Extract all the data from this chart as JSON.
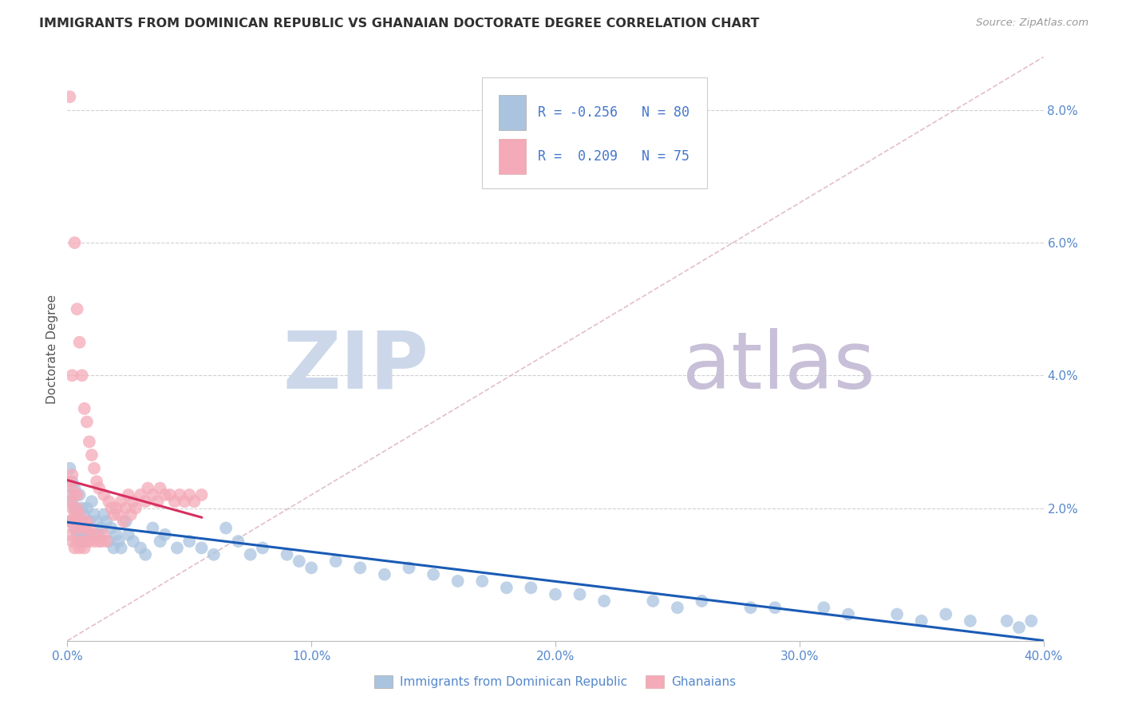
{
  "title": "IMMIGRANTS FROM DOMINICAN REPUBLIC VS GHANAIAN DOCTORATE DEGREE CORRELATION CHART",
  "source": "Source: ZipAtlas.com",
  "ylabel": "Doctorate Degree",
  "xlim": [
    0.0,
    0.4
  ],
  "ylim": [
    0.0,
    0.088
  ],
  "yticks": [
    0.0,
    0.02,
    0.04,
    0.06,
    0.08
  ],
  "ytick_labels": [
    "",
    "2.0%",
    "4.0%",
    "6.0%",
    "8.0%"
  ],
  "xticks": [
    0.0,
    0.1,
    0.2,
    0.3,
    0.4
  ],
  "xtick_labels": [
    "0.0%",
    "10.0%",
    "20.0%",
    "30.0%",
    "40.0%"
  ],
  "blue_color": "#aac4e0",
  "pink_color": "#f4aab8",
  "blue_line_color": "#1a5bb5",
  "pink_line_color": "#d63060",
  "diag_color": "#e0b8c0",
  "grid_color": "#d0d0d0",
  "title_color": "#303030",
  "axis_color": "#5588cc",
  "source_color": "#999999",
  "legend_text_color": "#4477cc",
  "watermark_zip_color": "#ccd8ea",
  "watermark_atlas_color": "#c8c0d8",
  "blue_x": [
    0.001,
    0.001,
    0.001,
    0.002,
    0.002,
    0.002,
    0.003,
    0.003,
    0.003,
    0.004,
    0.004,
    0.005,
    0.005,
    0.005,
    0.006,
    0.006,
    0.007,
    0.007,
    0.008,
    0.008,
    0.009,
    0.01,
    0.01,
    0.011,
    0.012,
    0.013,
    0.014,
    0.015,
    0.016,
    0.017,
    0.018,
    0.019,
    0.02,
    0.021,
    0.022,
    0.024,
    0.025,
    0.027,
    0.03,
    0.032,
    0.035,
    0.038,
    0.04,
    0.045,
    0.05,
    0.055,
    0.06,
    0.065,
    0.07,
    0.075,
    0.08,
    0.09,
    0.095,
    0.1,
    0.11,
    0.12,
    0.13,
    0.14,
    0.15,
    0.16,
    0.17,
    0.18,
    0.19,
    0.2,
    0.21,
    0.22,
    0.24,
    0.25,
    0.26,
    0.28,
    0.29,
    0.31,
    0.32,
    0.34,
    0.35,
    0.36,
    0.37,
    0.385,
    0.39,
    0.395
  ],
  "blue_y": [
    0.018,
    0.022,
    0.026,
    0.018,
    0.021,
    0.024,
    0.017,
    0.02,
    0.023,
    0.016,
    0.019,
    0.015,
    0.018,
    0.022,
    0.016,
    0.02,
    0.015,
    0.019,
    0.016,
    0.02,
    0.018,
    0.021,
    0.016,
    0.019,
    0.018,
    0.016,
    0.017,
    0.019,
    0.018,
    0.015,
    0.017,
    0.014,
    0.016,
    0.015,
    0.014,
    0.018,
    0.016,
    0.015,
    0.014,
    0.013,
    0.017,
    0.015,
    0.016,
    0.014,
    0.015,
    0.014,
    0.013,
    0.017,
    0.015,
    0.013,
    0.014,
    0.013,
    0.012,
    0.011,
    0.012,
    0.011,
    0.01,
    0.011,
    0.01,
    0.009,
    0.009,
    0.008,
    0.008,
    0.007,
    0.007,
    0.006,
    0.006,
    0.005,
    0.006,
    0.005,
    0.005,
    0.005,
    0.004,
    0.004,
    0.003,
    0.004,
    0.003,
    0.003,
    0.002,
    0.003
  ],
  "pink_x": [
    0.001,
    0.001,
    0.001,
    0.001,
    0.001,
    0.002,
    0.002,
    0.002,
    0.002,
    0.002,
    0.002,
    0.003,
    0.003,
    0.003,
    0.003,
    0.003,
    0.004,
    0.004,
    0.004,
    0.004,
    0.004,
    0.005,
    0.005,
    0.005,
    0.005,
    0.006,
    0.006,
    0.006,
    0.007,
    0.007,
    0.007,
    0.008,
    0.008,
    0.008,
    0.009,
    0.009,
    0.009,
    0.01,
    0.01,
    0.011,
    0.011,
    0.012,
    0.012,
    0.013,
    0.013,
    0.014,
    0.015,
    0.015,
    0.016,
    0.017,
    0.018,
    0.019,
    0.02,
    0.021,
    0.022,
    0.023,
    0.024,
    0.025,
    0.026,
    0.027,
    0.028,
    0.03,
    0.032,
    0.033,
    0.035,
    0.037,
    0.038,
    0.04,
    0.042,
    0.044,
    0.046,
    0.048,
    0.05,
    0.052,
    0.055
  ],
  "pink_y": [
    0.016,
    0.018,
    0.021,
    0.024,
    0.082,
    0.015,
    0.018,
    0.02,
    0.023,
    0.025,
    0.04,
    0.014,
    0.017,
    0.019,
    0.022,
    0.06,
    0.015,
    0.018,
    0.02,
    0.022,
    0.05,
    0.014,
    0.017,
    0.019,
    0.045,
    0.015,
    0.018,
    0.04,
    0.014,
    0.017,
    0.035,
    0.015,
    0.018,
    0.033,
    0.015,
    0.017,
    0.03,
    0.016,
    0.028,
    0.015,
    0.026,
    0.016,
    0.024,
    0.015,
    0.023,
    0.015,
    0.016,
    0.022,
    0.015,
    0.021,
    0.02,
    0.019,
    0.02,
    0.019,
    0.021,
    0.018,
    0.02,
    0.022,
    0.019,
    0.021,
    0.02,
    0.022,
    0.021,
    0.023,
    0.022,
    0.021,
    0.023,
    0.022,
    0.022,
    0.021,
    0.022,
    0.021,
    0.022,
    0.021,
    0.022
  ]
}
